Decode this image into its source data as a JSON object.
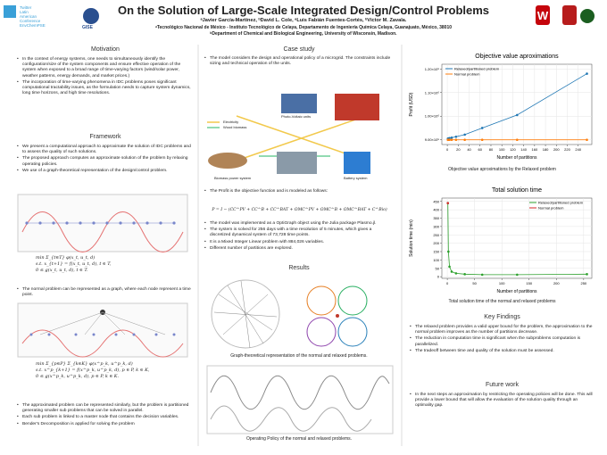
{
  "header": {
    "title": "On the Solution of Large-Scale Integrated Design/Control Problems",
    "authors": "ᵃJavier García-Martínez, ᵇDavid L. Cole, ᵃLuis Fabián Fuentes-Cortés, ᵇVíctor M. Zavala.",
    "affiliations": [
      "ᵃTecnológico Nacional de México - Instituto Tecnológico de Celaya, Departamento de Ingeniería Química Celaya, Guanajuato, México, 38010",
      "ᵇDepartment of Chemical and Biological Engineering, University of Wisconsin, Madison."
    ],
    "logo_text": [
      "Twitter",
      "Latin",
      "American",
      "Conference",
      "EnvChemPSE"
    ],
    "logo_gise": "GISE"
  },
  "motivation": {
    "heading": "Motivation",
    "bullets": [
      "In the context of energy systems, one needs to simultaneously identify the configuration/size of the system components and ensure effective operation of the system when exposed to a broad range of time-varying factors (wind/solar power, weather patterns, energy demands, and market prices.)",
      "The incorporation of time-varying phenomena in IDC problems poses significant computational tractability issues, as the formulation needs to capture system dynamics, long time horizons, and high time resolutions."
    ]
  },
  "framework": {
    "heading": "Framework",
    "bullets": [
      "We present a computational approach to approximate the solution of IDC problems and to assess the quality of such solutions.",
      "The proposed approach computes an approximate solution of the problem by relaxing operating policies.",
      "We use of a graph-theoretical representation of the design/control problem."
    ],
    "equations_normal": [
      "min Σ_{t∈T} φ(x_t, u_t, d)",
      "s.t. x_{t+1} = f(x_t, u_t, d), t ∈ T,",
      "0 ≤ g(x_t, u_t, d), t ∈ T."
    ],
    "graph_bullet": "The normal problem can be represented as a graph, where each node represent a time point.",
    "equations_partitioned": [
      "min Σ_{p∈P} Σ_{k∈K} φ(x^p_k, u^p_k, d)",
      "s.t. x^p_{k+1} = f(x^p_k, u^p_k, d), p ∈ P, k ∈ K,",
      "0 ≤ g(x^p_k, u^p_k, d), p ∈ P, k ∈ K."
    ],
    "bullets_after": [
      "The approximated problem can be represented similarly, but the problem is partitioned generating smaller sub problems that can be solved in parallel.",
      "Each sub problem is linked to a master node that contains the decision variables.",
      "Bender's Decomposition is applied for solving the problem"
    ]
  },
  "case_study": {
    "heading": "Case study",
    "intro": "The model considers the design and operational policy of a microgrid. The constraints include sizing and technical operation of the units.",
    "diagram_labels": [
      "Electricity",
      "Wood biomass",
      "Photo-Voltaic units",
      "Biomass power system",
      "Battery system"
    ],
    "profit_intro": "The Profit is the objective function and is modeled as follows:",
    "formula": "P = I − (CC^PV + CC^B + CC^BAT + OMC^PV + OMC^B + OMC^BAT + C^Bio)",
    "bullets": [
      "The model was implemented as a OptiGraph object using the Julia package Plasmo.jl.",
      "The system is solved for 256 days with a time resolution of 5 minutes, which gives a discretized dynamical system of 73,728 time points.",
      "It is a Mixed Integer Linear problem with 884,026 variables.",
      "Different number of partitions are explored."
    ]
  },
  "results": {
    "heading": "Results",
    "caption_graph": "Graph-theoretical representation of the normal and relaxed problems.",
    "caption_policy": "Operating Policy of the normal and relaxed problems."
  },
  "chart_data": [
    {
      "type": "line",
      "title": "Objective value aproximations",
      "x_label": "Number of partitions",
      "y_label": "Profit (USD)",
      "x": [
        1,
        2,
        4,
        8,
        16,
        32,
        64,
        128,
        256
      ],
      "series": [
        {
          "name": "Relaxed/partitioned problem",
          "color": "#1f77b4",
          "values": [
            905000,
            906000,
            907000,
            909000,
            913000,
            922000,
            950000,
            1005000,
            1180000
          ]
        },
        {
          "name": "Normal problem",
          "color": "#ff7f0e",
          "values": [
            900000,
            900000,
            900000,
            900000,
            900000,
            900000,
            900000,
            900000,
            900000
          ]
        }
      ],
      "xlim": [
        -10,
        265
      ],
      "xticks": [
        0,
        20,
        40,
        60,
        80,
        100,
        120,
        140,
        160,
        180,
        200,
        220,
        240
      ],
      "ylim": [
        880000,
        1220000
      ],
      "yticks": [
        {
          "value": 900000,
          "label": "9.00×10⁵"
        },
        {
          "value": 1000000,
          "label": "1.00×10⁶"
        },
        {
          "value": 1100000,
          "label": "1.10×10⁶"
        },
        {
          "value": 1200000,
          "label": "1.20×10⁶"
        }
      ],
      "grid": true,
      "legend": "upper left",
      "caption": "Objective value aproximations by the Relaxed problem"
    },
    {
      "type": "line",
      "title": "Total solution time",
      "x_label": "Number of partitions",
      "y_label": "Solution time (min)",
      "x": [
        1,
        2,
        4,
        8,
        16,
        32,
        64,
        128,
        256
      ],
      "series": [
        {
          "name": "Relaxed/partitioned problem",
          "color": "#2ca02c",
          "values": [
            440,
            150,
            60,
            30,
            20,
            15,
            12,
            12,
            15
          ]
        },
        {
          "name": "Normal problem",
          "color": "#d62728",
          "values": [
            440,
            null,
            null,
            null,
            null,
            null,
            null,
            null,
            null
          ]
        }
      ],
      "xlim": [
        -10,
        265
      ],
      "xticks": [
        0,
        50,
        100,
        150,
        200,
        250
      ],
      "ylim": [
        -10,
        470
      ],
      "yticks": [
        0,
        50,
        100,
        150,
        200,
        250,
        300,
        350,
        400,
        450
      ],
      "grid": true,
      "legend": "upper right",
      "caption": "Total solution time of the normal and relaxed problems"
    }
  ],
  "key_findings": {
    "heading": "Key Findings",
    "bullets": [
      "The relaxed problem provides a valid upper bound for the problem, the approximation to the normal problem improves as the number of partitions decrease.",
      "The reduction in computation time is significant when the subproblems computation is parallelized.",
      "The tradeoff between time and quality of the solution must be assessed."
    ]
  },
  "future_work": {
    "heading": "Future work",
    "bullets": [
      "In the next steps an approximation by restricting the operating policies will be done. This will provide a lower bound that will allow the evaluation of the solution quality through an optimality gap."
    ]
  }
}
